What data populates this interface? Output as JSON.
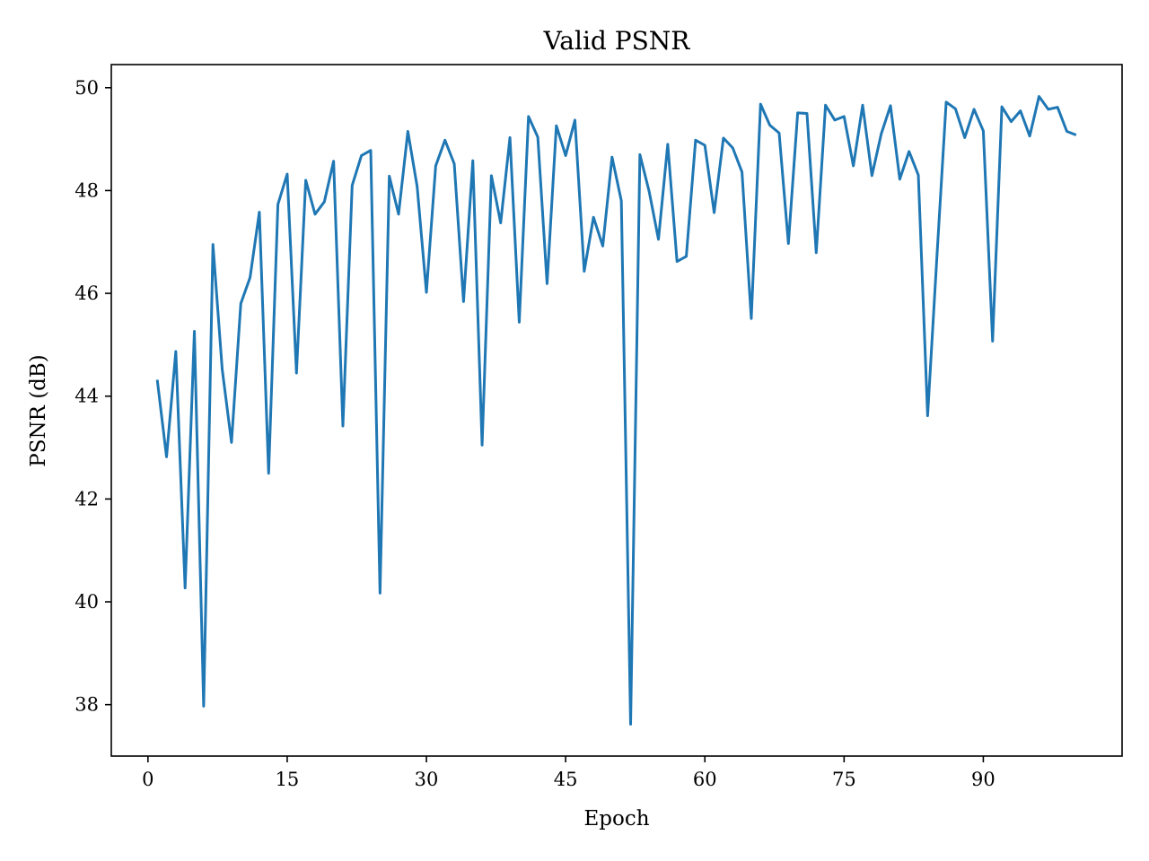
{
  "chart_data": {
    "type": "line",
    "title": "Valid PSNR",
    "xlabel": "Epoch",
    "ylabel": "PSNR (dB)",
    "xlim": [
      -3.95,
      104.95
    ],
    "ylim": [
      37.0,
      50.45
    ],
    "xticks": [
      0,
      15,
      30,
      45,
      60,
      75,
      90
    ],
    "yticks": [
      38,
      40,
      42,
      44,
      46,
      48,
      50
    ],
    "grid": false,
    "legend": "none",
    "color": "#1f77b4",
    "series": [
      {
        "x": [
          1,
          2,
          3,
          4,
          5,
          6,
          7,
          8,
          9,
          10,
          11,
          12,
          13,
          14,
          15,
          16,
          17,
          18,
          19,
          20,
          21,
          22,
          23,
          24,
          25,
          26,
          27,
          28,
          29,
          30,
          31,
          32,
          33,
          34,
          35,
          36,
          37,
          38,
          39,
          40,
          41,
          42,
          43,
          44,
          45,
          46,
          47,
          48,
          49,
          50,
          51,
          52,
          53,
          54,
          55,
          56,
          57,
          58,
          59,
          60,
          61,
          62,
          63,
          64,
          65,
          66,
          67,
          68,
          69,
          70,
          71,
          72,
          73,
          74,
          75,
          76,
          77,
          78,
          79,
          80,
          81,
          82,
          83,
          84,
          85,
          86,
          87,
          88,
          89,
          90,
          91,
          92,
          93,
          94,
          95,
          96,
          97,
          98,
          99,
          100
        ],
        "values": [
          44.32,
          42.82,
          44.87,
          40.27,
          45.26,
          37.97,
          46.95,
          44.52,
          43.1,
          45.8,
          46.31,
          47.58,
          42.5,
          47.73,
          48.32,
          44.45,
          48.2,
          47.54,
          47.78,
          48.57,
          43.42,
          48.1,
          48.68,
          48.78,
          40.17,
          48.28,
          47.54,
          49.15,
          48.08,
          46.02,
          48.48,
          48.98,
          48.52,
          45.84,
          48.58,
          43.05,
          48.29,
          47.37,
          49.03,
          45.44,
          49.44,
          49.04,
          46.19,
          49.26,
          48.68,
          49.37,
          46.43,
          47.48,
          46.92,
          48.65,
          47.8,
          37.62,
          48.7,
          47.98,
          47.05,
          48.9,
          46.62,
          46.72,
          48.98,
          48.88,
          47.57,
          49.02,
          48.83,
          48.36,
          45.51,
          49.68,
          49.27,
          49.12,
          46.97,
          49.51,
          49.5,
          46.79,
          49.66,
          49.37,
          49.44,
          48.48,
          49.66,
          48.29,
          49.1,
          49.65,
          48.22,
          48.76,
          48.3,
          43.62,
          46.71,
          49.72,
          49.59,
          49.03,
          49.58,
          49.16,
          45.07,
          49.63,
          49.34,
          49.55,
          49.06,
          49.83,
          49.58,
          49.62,
          49.15,
          49.08
        ]
      }
    ]
  }
}
